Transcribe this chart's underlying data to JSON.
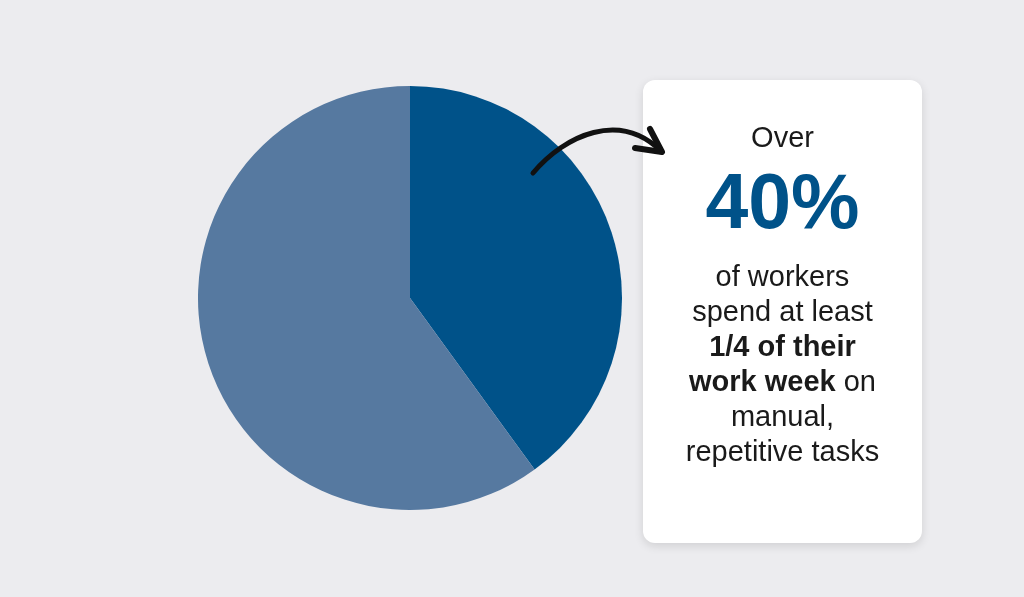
{
  "chart_data": {
    "type": "pie",
    "categories": [
      null,
      null
    ],
    "values": [
      40,
      60
    ],
    "colors": [
      "#005289",
      "#5679a0"
    ],
    "annotations": [
      "Over",
      "40%",
      "of workers spend at least",
      "1/4 of their work week",
      "on manual, repetitive tasks"
    ]
  }
}
